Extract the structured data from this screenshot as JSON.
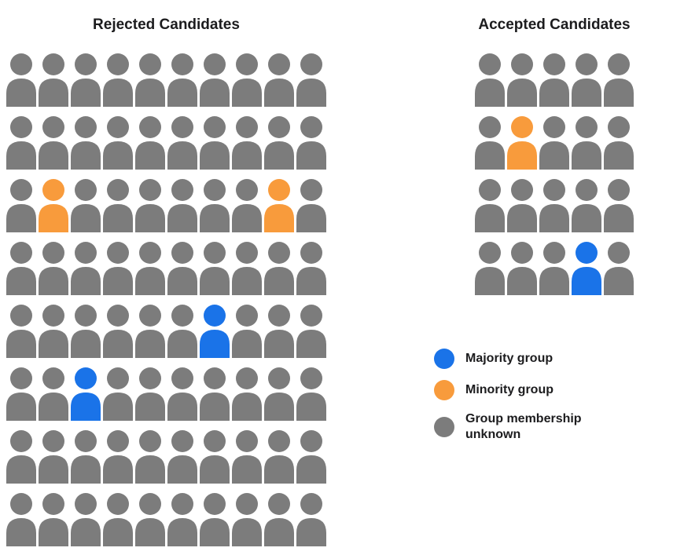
{
  "colors": {
    "majority": "#1A73E8",
    "minority": "#F89B3C",
    "unknown": "#7C7C7C"
  },
  "codes": {
    "U": "unknown",
    "N": "minority",
    "M": "majority"
  },
  "rejected": {
    "title": "Rejected Candidates",
    "columns": 10,
    "rows": [
      "UUUUUUUUUU",
      "UUUUUUUUUU",
      "UNUUUUUUNU",
      "UUUUUUUUUU",
      "UUUUUUMUUU",
      "UUMUUUUUUU",
      "UUUUUUUUUU",
      "UUUUUUUUUU"
    ]
  },
  "accepted": {
    "title": "Accepted Candidates",
    "columns": 5,
    "rows": [
      "UUUUU",
      "UNUUU",
      "UUUUU",
      "UUUMU"
    ]
  },
  "legend": {
    "items": [
      {
        "key": "majority",
        "label": "Majority group"
      },
      {
        "key": "minority",
        "label": "Minority group"
      },
      {
        "key": "unknown",
        "label": "Group membership unknown"
      }
    ]
  },
  "chart_data": {
    "type": "pictograph",
    "title": "",
    "groups": [
      {
        "label": "Rejected Candidates",
        "rows": 8,
        "cols": 10,
        "total": 80,
        "counts": {
          "majority": 2,
          "minority": 2,
          "unknown": 76
        }
      },
      {
        "label": "Accepted Candidates",
        "rows": 4,
        "cols": 5,
        "total": 20,
        "counts": {
          "majority": 1,
          "minority": 1,
          "unknown": 18
        }
      }
    ],
    "legend": [
      "Majority group",
      "Minority group",
      "Group membership unknown"
    ],
    "legend_colors": {
      "Majority group": "#1A73E8",
      "Minority group": "#F89B3C",
      "Group membership unknown": "#7C7C7C"
    }
  }
}
